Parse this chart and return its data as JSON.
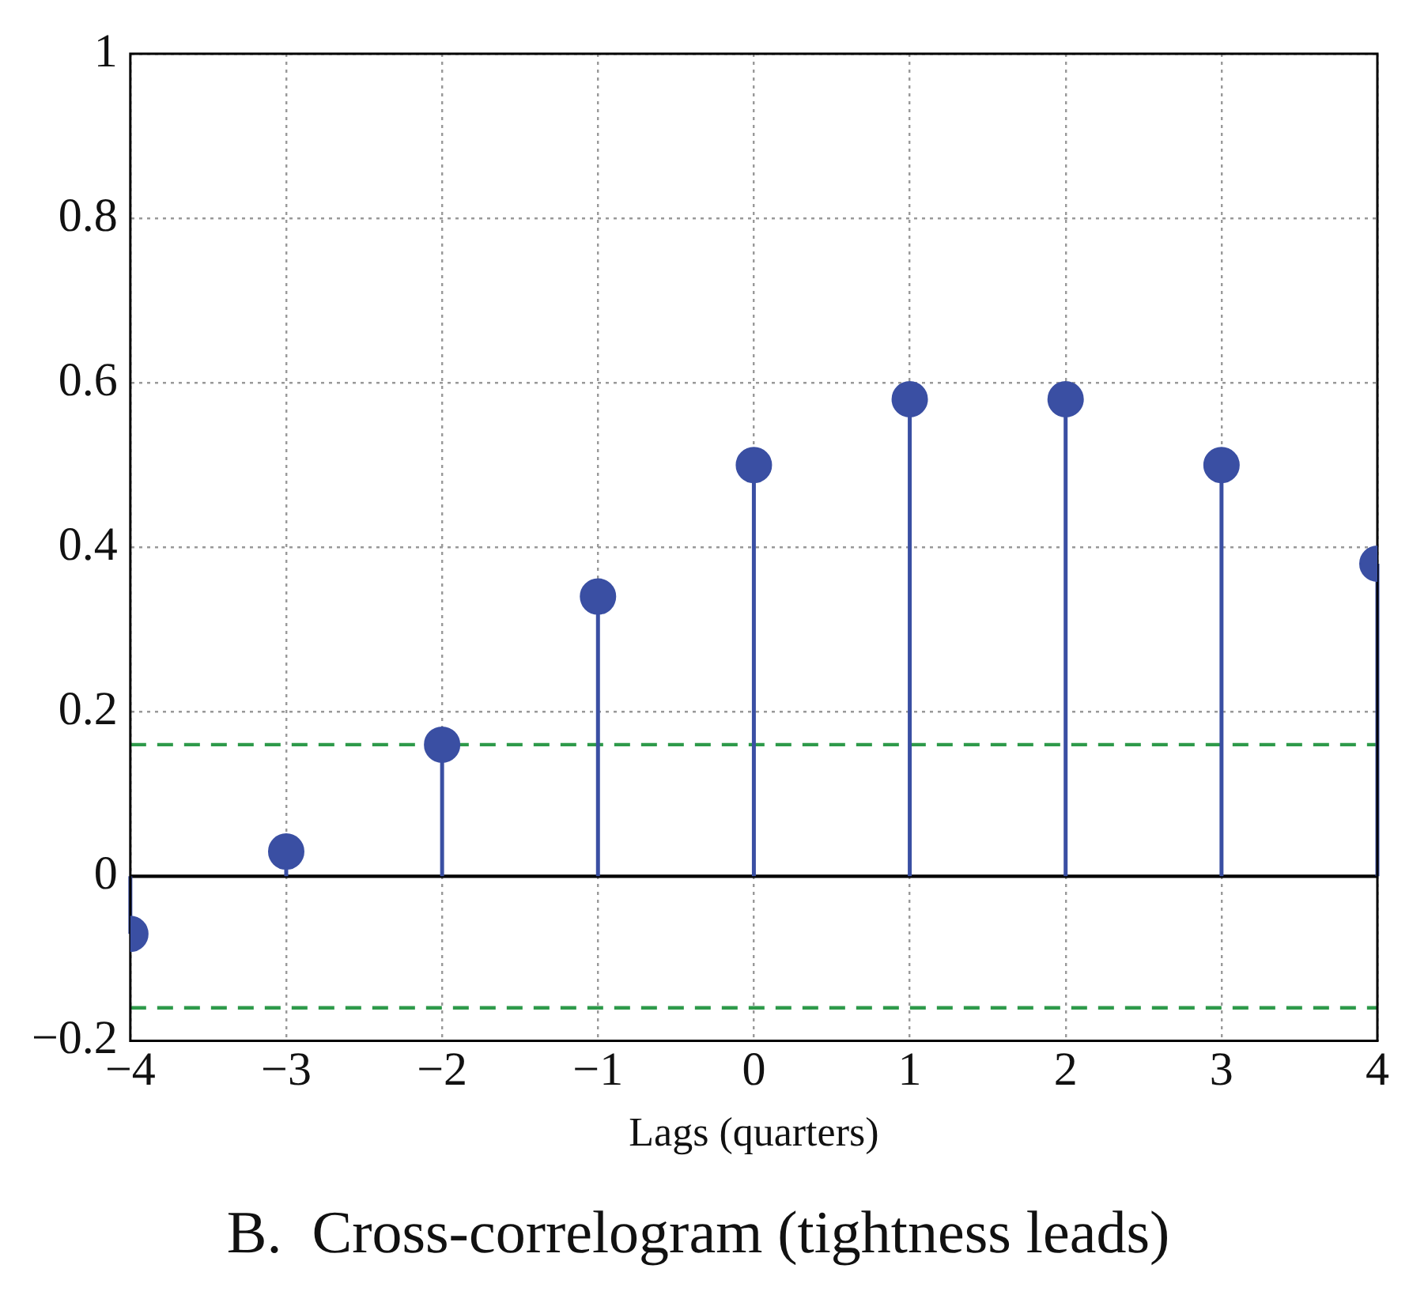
{
  "chart_data": {
    "type": "lollipop",
    "title": "B.  Cross-correlogram (tightness leads)",
    "xlabel": "Lags (quarters)",
    "x": [
      -4,
      -3,
      -2,
      -1,
      0,
      1,
      2,
      3,
      4
    ],
    "series": [
      {
        "color": "#3a4fa3",
        "values": [
          -0.07,
          0.03,
          0.16,
          0.34,
          0.5,
          0.58,
          0.58,
          0.5,
          0.38
        ]
      }
    ],
    "xlim": [
      -4,
      4
    ],
    "xticks": [
      -4,
      -3,
      -2,
      -1,
      0,
      1,
      2,
      3,
      4
    ],
    "ylim": [
      -0.2,
      1
    ],
    "yticks": [
      -0.2,
      0,
      0.2,
      0.4,
      0.6,
      0.8,
      1
    ],
    "ref_lines": [
      {
        "axis": "y",
        "value": 0,
        "color": "#000000",
        "line_style": "solid"
      },
      {
        "axis": "y",
        "value": 0.16,
        "color": "#2e9a4a",
        "line_style": "dashed"
      },
      {
        "axis": "y",
        "value": -0.16,
        "color": "#2e9a4a",
        "line_style": "dashed"
      }
    ],
    "grid": true,
    "marker": "circle",
    "legend": false
  }
}
